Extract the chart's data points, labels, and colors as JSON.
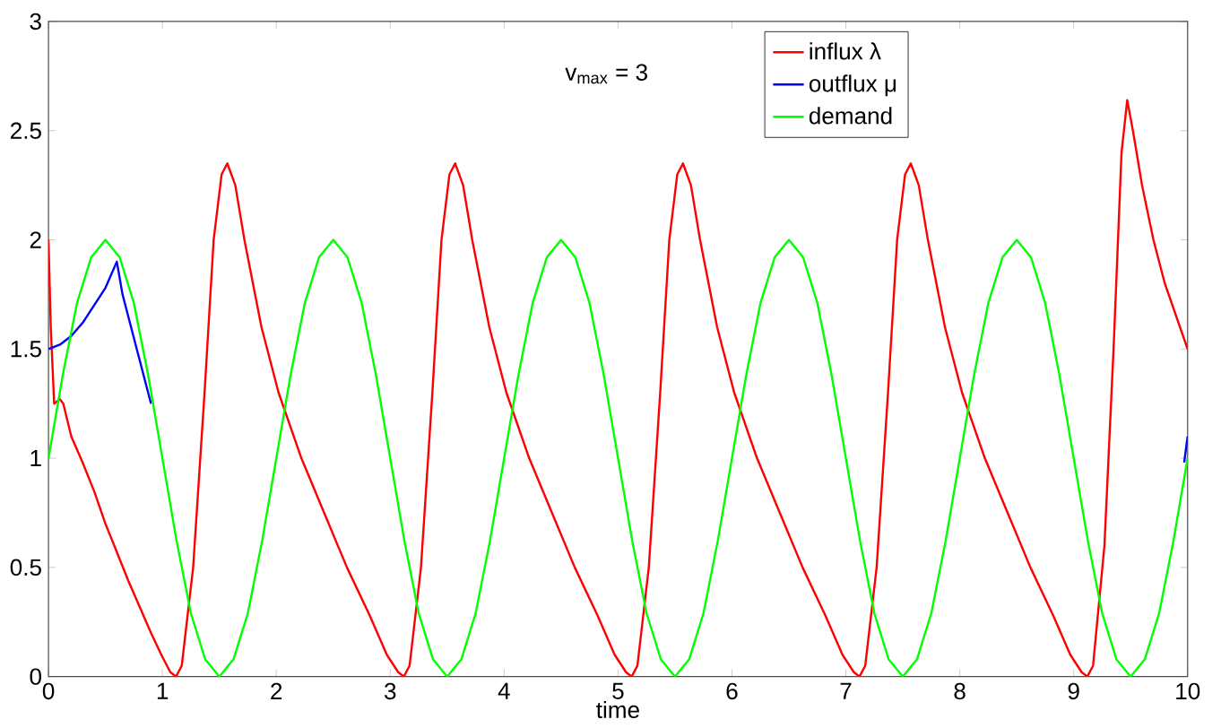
{
  "chart_data": {
    "type": "line",
    "xlabel": "time",
    "annotations": [
      "v$_{max}$ = 3"
    ],
    "xlim": [
      0,
      10
    ],
    "ylim": [
      0,
      3
    ],
    "xticks": [
      0,
      1,
      2,
      3,
      4,
      5,
      6,
      7,
      8,
      9,
      10
    ],
    "yticks": [
      0,
      0.5,
      1,
      1.5,
      2,
      2.5,
      3
    ],
    "legend": "top right",
    "grid": false,
    "marker": "none",
    "line_style": "solid",
    "series": [
      {
        "name": "influx λ",
        "color": "#ff0000",
        "x": [
          0,
          0.02,
          0.05,
          0.1,
          0.13,
          0.2,
          0.3,
          0.4,
          0.5,
          0.6,
          0.7,
          0.8,
          0.9,
          1.0,
          1.07,
          1.12,
          1.17,
          1.27,
          1.37,
          1.45,
          1.52,
          1.57,
          1.64,
          1.72,
          1.87,
          2.02,
          2.22,
          2.42,
          2.62,
          2.82,
          2.97,
          3.07,
          3.12,
          3.17,
          3.27,
          3.37,
          3.45,
          3.52,
          3.57,
          3.64,
          3.72,
          3.87,
          4.02,
          4.22,
          4.42,
          4.62,
          4.82,
          4.97,
          5.07,
          5.12,
          5.17,
          5.27,
          5.37,
          5.45,
          5.52,
          5.57,
          5.64,
          5.72,
          5.87,
          6.02,
          6.22,
          6.42,
          6.62,
          6.82,
          6.97,
          7.07,
          7.12,
          7.17,
          7.27,
          7.37,
          7.45,
          7.52,
          7.57,
          7.64,
          7.72,
          7.87,
          8.02,
          8.22,
          8.42,
          8.62,
          8.82,
          8.97,
          9.07,
          9.12,
          9.17,
          9.27,
          9.35,
          9.42,
          9.47,
          9.52,
          9.6,
          9.7,
          9.8,
          9.9,
          10
        ],
        "values": [
          2.0,
          1.6,
          1.25,
          1.27,
          1.25,
          1.1,
          0.98,
          0.85,
          0.7,
          0.57,
          0.44,
          0.32,
          0.2,
          0.09,
          0.02,
          0,
          0.05,
          0.5,
          1.3,
          2.0,
          2.3,
          2.35,
          2.25,
          2.0,
          1.6,
          1.3,
          1.0,
          0.75,
          0.5,
          0.28,
          0.1,
          0.02,
          0,
          0.05,
          0.5,
          1.3,
          2.0,
          2.3,
          2.35,
          2.25,
          2.0,
          1.6,
          1.3,
          1.0,
          0.75,
          0.5,
          0.28,
          0.1,
          0.02,
          0,
          0.05,
          0.5,
          1.3,
          2.0,
          2.3,
          2.35,
          2.25,
          2.0,
          1.6,
          1.3,
          1.0,
          0.75,
          0.5,
          0.28,
          0.1,
          0.02,
          0,
          0.05,
          0.5,
          1.3,
          2.0,
          2.3,
          2.35,
          2.25,
          2.0,
          1.6,
          1.3,
          1.0,
          0.75,
          0.5,
          0.28,
          0.1,
          0.02,
          0,
          0.05,
          0.6,
          1.5,
          2.4,
          2.64,
          2.5,
          2.25,
          2.0,
          1.8,
          1.65,
          1.5
        ]
      },
      {
        "name": "outflux μ",
        "color": "#0000ff",
        "x": [
          0,
          0.1,
          0.2,
          0.3,
          0.4,
          0.5,
          0.6,
          0.65,
          0.7,
          0.8,
          0.9,
          5,
          9.97,
          10
        ],
        "values": [
          1.5,
          1.52,
          1.56,
          1.62,
          1.7,
          1.78,
          1.9,
          1.75,
          1.65,
          1.45,
          1.25,
          null,
          0.98,
          1.1
        ]
      },
      {
        "name": "demand",
        "color": "#00ff00",
        "x": [
          0,
          0.125,
          0.25,
          0.375,
          0.5,
          0.625,
          0.75,
          0.875,
          1,
          1.125,
          1.25,
          1.375,
          1.5,
          1.625,
          1.75,
          1.875,
          2,
          2.125,
          2.25,
          2.375,
          2.5,
          2.625,
          2.75,
          2.875,
          3,
          3.125,
          3.25,
          3.375,
          3.5,
          3.625,
          3.75,
          3.875,
          4,
          4.125,
          4.25,
          4.375,
          4.5,
          4.625,
          4.75,
          4.875,
          5,
          5.125,
          5.25,
          5.375,
          5.5,
          5.625,
          5.75,
          5.875,
          6,
          6.125,
          6.25,
          6.375,
          6.5,
          6.625,
          6.75,
          6.875,
          7,
          7.125,
          7.25,
          7.375,
          7.5,
          7.625,
          7.75,
          7.875,
          8,
          8.125,
          8.25,
          8.375,
          8.5,
          8.625,
          8.75,
          8.875,
          9,
          9.125,
          9.25,
          9.375,
          9.5,
          9.625,
          9.75,
          9.875,
          10
        ],
        "values": [
          1,
          1.38,
          1.71,
          1.92,
          2,
          1.92,
          1.71,
          1.38,
          1,
          0.62,
          0.29,
          0.08,
          0,
          0.08,
          0.29,
          0.62,
          1,
          1.38,
          1.71,
          1.92,
          2,
          1.92,
          1.71,
          1.38,
          1,
          0.62,
          0.29,
          0.08,
          0,
          0.08,
          0.29,
          0.62,
          1,
          1.38,
          1.71,
          1.92,
          2,
          1.92,
          1.71,
          1.38,
          1,
          0.62,
          0.29,
          0.08,
          0,
          0.08,
          0.29,
          0.62,
          1,
          1.38,
          1.71,
          1.92,
          2,
          1.92,
          1.71,
          1.38,
          1,
          0.62,
          0.29,
          0.08,
          0,
          0.08,
          0.29,
          0.62,
          1,
          1.38,
          1.71,
          1.92,
          2,
          1.92,
          1.71,
          1.38,
          1,
          0.62,
          0.29,
          0.08,
          0,
          0.08,
          0.29,
          0.62,
          1
        ]
      }
    ]
  }
}
